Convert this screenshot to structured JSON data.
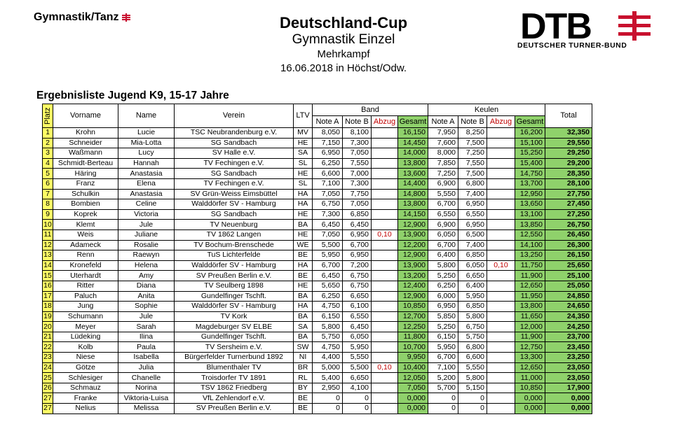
{
  "logo_left": {
    "text": "Gymnastik/Tanz"
  },
  "header": {
    "title": "Deutschland-Cup",
    "subtitle": "Gymnastik Einzel",
    "discipline": "Mehrkampf",
    "date_place": "16.06.2018 in Höchst/Odw."
  },
  "logo_right": {
    "abbr": "DTB",
    "name": "DEUTSCHER TURNER-BUND"
  },
  "list_title": "Ergebnisliste Jugend K9, 15-17 Jahre",
  "colors": {
    "platz": "#ffff66",
    "gesamt": "#8fd16b",
    "abzug": "#c00000",
    "brand": "#c8102e"
  },
  "table": {
    "headers": {
      "platz": "Platz",
      "vorname": "Vorname",
      "name": "Name",
      "verein": "Verein",
      "ltv": "LTV",
      "band": "Band",
      "keulen": "Keulen",
      "note_a": "Note A",
      "note_b": "Note B",
      "abzug": "Abzug",
      "gesamt": "Gesamt",
      "total": "Total"
    },
    "rows": [
      {
        "platz": "1",
        "vorname": "Krohn",
        "name": "Lucie",
        "verein": "TSC Neubrandenburg e.V.",
        "ltv": "MV",
        "band_a": "8,050",
        "band_b": "8,100",
        "band_abzug": "",
        "band_gesamt": "16,150",
        "keulen_a": "7,950",
        "keulen_b": "8,250",
        "keulen_abzug": "",
        "keulen_gesamt": "16,200",
        "total": "32,350"
      },
      {
        "platz": "2",
        "vorname": "Schneider",
        "name": "Mia-Lotta",
        "verein": "SG Sandbach",
        "ltv": "HE",
        "band_a": "7,150",
        "band_b": "7,300",
        "band_abzug": "",
        "band_gesamt": "14,450",
        "keulen_a": "7,600",
        "keulen_b": "7,500",
        "keulen_abzug": "",
        "keulen_gesamt": "15,100",
        "total": "29,550"
      },
      {
        "platz": "3",
        "vorname": "Waßmann",
        "name": "Lucy",
        "verein": "SV Halle e.V.",
        "ltv": "SA",
        "band_a": "6,950",
        "band_b": "7,050",
        "band_abzug": "",
        "band_gesamt": "14,000",
        "keulen_a": "8,000",
        "keulen_b": "7,250",
        "keulen_abzug": "",
        "keulen_gesamt": "15,250",
        "total": "29,250"
      },
      {
        "platz": "4",
        "vorname": "Schmidt-Berteau",
        "name": "Hannah",
        "verein": "TV Fechingen e.V.",
        "ltv": "SL",
        "band_a": "6,250",
        "band_b": "7,550",
        "band_abzug": "",
        "band_gesamt": "13,800",
        "keulen_a": "7,850",
        "keulen_b": "7,550",
        "keulen_abzug": "",
        "keulen_gesamt": "15,400",
        "total": "29,200"
      },
      {
        "platz": "5",
        "vorname": "Häring",
        "name": "Anastasia",
        "verein": "SG Sandbach",
        "ltv": "HE",
        "band_a": "6,600",
        "band_b": "7,000",
        "band_abzug": "",
        "band_gesamt": "13,600",
        "keulen_a": "7,250",
        "keulen_b": "7,500",
        "keulen_abzug": "",
        "keulen_gesamt": "14,750",
        "total": "28,350"
      },
      {
        "platz": "6",
        "vorname": "Franz",
        "name": "Elena",
        "verein": "TV Fechingen e.V.",
        "ltv": "SL",
        "band_a": "7,100",
        "band_b": "7,300",
        "band_abzug": "",
        "band_gesamt": "14,400",
        "keulen_a": "6,900",
        "keulen_b": "6,800",
        "keulen_abzug": "",
        "keulen_gesamt": "13,700",
        "total": "28,100"
      },
      {
        "platz": "7",
        "vorname": "Schulkin",
        "name": "Anastasia",
        "verein": "SV Grün-Weiss Eimsbüttel",
        "ltv": "HA",
        "band_a": "7,050",
        "band_b": "7,750",
        "band_abzug": "",
        "band_gesamt": "14,800",
        "keulen_a": "5,550",
        "keulen_b": "7,400",
        "keulen_abzug": "",
        "keulen_gesamt": "12,950",
        "total": "27,750"
      },
      {
        "platz": "8",
        "vorname": "Bombien",
        "name": "Celine",
        "verein": "Walddörfer SV - Hamburg",
        "ltv": "HA",
        "band_a": "6,750",
        "band_b": "7,050",
        "band_abzug": "",
        "band_gesamt": "13,800",
        "keulen_a": "6,700",
        "keulen_b": "6,950",
        "keulen_abzug": "",
        "keulen_gesamt": "13,650",
        "total": "27,450"
      },
      {
        "platz": "9",
        "vorname": "Koprek",
        "name": "Victoria",
        "verein": "SG Sandbach",
        "ltv": "HE",
        "band_a": "7,300",
        "band_b": "6,850",
        "band_abzug": "",
        "band_gesamt": "14,150",
        "keulen_a": "6,550",
        "keulen_b": "6,550",
        "keulen_abzug": "",
        "keulen_gesamt": "13,100",
        "total": "27,250"
      },
      {
        "platz": "10",
        "vorname": "Klemt",
        "name": "Jule",
        "verein": "TV Neuenburg",
        "ltv": "BA",
        "band_a": "6,450",
        "band_b": "6,450",
        "band_abzug": "",
        "band_gesamt": "12,900",
        "keulen_a": "6,900",
        "keulen_b": "6,950",
        "keulen_abzug": "",
        "keulen_gesamt": "13,850",
        "total": "26,750"
      },
      {
        "platz": "11",
        "vorname": "Weis",
        "name": "Juliane",
        "verein": "TV 1862 Langen",
        "ltv": "HE",
        "band_a": "7,050",
        "band_b": "6,950",
        "band_abzug": "0,10",
        "band_gesamt": "13,900",
        "keulen_a": "6,050",
        "keulen_b": "6,500",
        "keulen_abzug": "",
        "keulen_gesamt": "12,550",
        "total": "26,450"
      },
      {
        "platz": "12",
        "vorname": "Adameck",
        "name": "Rosalie",
        "verein": "TV Bochum-Brenschede",
        "ltv": "WE",
        "band_a": "5,500",
        "band_b": "6,700",
        "band_abzug": "",
        "band_gesamt": "12,200",
        "keulen_a": "6,700",
        "keulen_b": "7,400",
        "keulen_abzug": "",
        "keulen_gesamt": "14,100",
        "total": "26,300"
      },
      {
        "platz": "13",
        "vorname": "Renn",
        "name": "Raewyn",
        "verein": "TuS Lichterfelde",
        "ltv": "BE",
        "band_a": "5,950",
        "band_b": "6,950",
        "band_abzug": "",
        "band_gesamt": "12,900",
        "keulen_a": "6,400",
        "keulen_b": "6,850",
        "keulen_abzug": "",
        "keulen_gesamt": "13,250",
        "total": "26,150"
      },
      {
        "platz": "14",
        "vorname": "Kronefeld",
        "name": "Helena",
        "verein": "Walddörfer SV - Hamburg",
        "ltv": "HA",
        "band_a": "6,700",
        "band_b": "7,200",
        "band_abzug": "",
        "band_gesamt": "13,900",
        "keulen_a": "5,800",
        "keulen_b": "6,050",
        "keulen_abzug": "0,10",
        "keulen_gesamt": "11,750",
        "total": "25,650"
      },
      {
        "platz": "15",
        "vorname": "Uterhardt",
        "name": "Amy",
        "verein": "SV Preußen Berlin e.V.",
        "ltv": "BE",
        "band_a": "6,450",
        "band_b": "6,750",
        "band_abzug": "",
        "band_gesamt": "13,200",
        "keulen_a": "5,250",
        "keulen_b": "6,650",
        "keulen_abzug": "",
        "keulen_gesamt": "11,900",
        "total": "25,100"
      },
      {
        "platz": "16",
        "vorname": "Ritter",
        "name": "Diana",
        "verein": "TV Seulberg 1898",
        "ltv": "HE",
        "band_a": "5,650",
        "band_b": "6,750",
        "band_abzug": "",
        "band_gesamt": "12,400",
        "keulen_a": "6,250",
        "keulen_b": "6,400",
        "keulen_abzug": "",
        "keulen_gesamt": "12,650",
        "total": "25,050"
      },
      {
        "platz": "17",
        "vorname": "Paluch",
        "name": "Anita",
        "verein": "Gundelfinger Tschft.",
        "ltv": "BA",
        "band_a": "6,250",
        "band_b": "6,650",
        "band_abzug": "",
        "band_gesamt": "12,900",
        "keulen_a": "6,000",
        "keulen_b": "5,950",
        "keulen_abzug": "",
        "keulen_gesamt": "11,950",
        "total": "24,850"
      },
      {
        "platz": "18",
        "vorname": "Jung",
        "name": "Sophie",
        "verein": "Walddörfer SV - Hamburg",
        "ltv": "HA",
        "band_a": "4,750",
        "band_b": "6,100",
        "band_abzug": "",
        "band_gesamt": "10,850",
        "keulen_a": "6,950",
        "keulen_b": "6,850",
        "keulen_abzug": "",
        "keulen_gesamt": "13,800",
        "total": "24,650"
      },
      {
        "platz": "19",
        "vorname": "Schumann",
        "name": "Jule",
        "verein": "TV Kork",
        "ltv": "BA",
        "band_a": "6,150",
        "band_b": "6,550",
        "band_abzug": "",
        "band_gesamt": "12,700",
        "keulen_a": "5,850",
        "keulen_b": "5,800",
        "keulen_abzug": "",
        "keulen_gesamt": "11,650",
        "total": "24,350"
      },
      {
        "platz": "20",
        "vorname": "Meyer",
        "name": "Sarah",
        "verein": "Magdeburger SV ELBE",
        "ltv": "SA",
        "band_a": "5,800",
        "band_b": "6,450",
        "band_abzug": "",
        "band_gesamt": "12,250",
        "keulen_a": "5,250",
        "keulen_b": "6,750",
        "keulen_abzug": "",
        "keulen_gesamt": "12,000",
        "total": "24,250"
      },
      {
        "platz": "21",
        "vorname": "Lüdeking",
        "name": "Ilina",
        "verein": "Gundelfinger Tschft.",
        "ltv": "BA",
        "band_a": "5,750",
        "band_b": "6,050",
        "band_abzug": "",
        "band_gesamt": "11,800",
        "keulen_a": "6,150",
        "keulen_b": "5,750",
        "keulen_abzug": "",
        "keulen_gesamt": "11,900",
        "total": "23,700"
      },
      {
        "platz": "22",
        "vorname": "Kolb",
        "name": "Paula",
        "verein": "TV Sersheim e.V.",
        "ltv": "SW",
        "band_a": "4,750",
        "band_b": "5,950",
        "band_abzug": "",
        "band_gesamt": "10,700",
        "keulen_a": "5,950",
        "keulen_b": "6,800",
        "keulen_abzug": "",
        "keulen_gesamt": "12,750",
        "total": "23,450"
      },
      {
        "platz": "23",
        "vorname": "Niese",
        "name": "Isabella",
        "verein": "Bürgerfelder Turnerbund 1892",
        "ltv": "NI",
        "band_a": "4,400",
        "band_b": "5,550",
        "band_abzug": "",
        "band_gesamt": "9,950",
        "keulen_a": "6,700",
        "keulen_b": "6,600",
        "keulen_abzug": "",
        "keulen_gesamt": "13,300",
        "total": "23,250"
      },
      {
        "platz": "24",
        "vorname": "Götze",
        "name": "Julia",
        "verein": "Blumenthaler TV",
        "ltv": "BR",
        "band_a": "5,000",
        "band_b": "5,500",
        "band_abzug": "0,10",
        "band_gesamt": "10,400",
        "keulen_a": "7,100",
        "keulen_b": "5,550",
        "keulen_abzug": "",
        "keulen_gesamt": "12,650",
        "total": "23,050"
      },
      {
        "platz": "25",
        "vorname": "Schlesiger",
        "name": "Chanelle",
        "verein": "Troisdorfer TV 1891",
        "ltv": "RL",
        "band_a": "5,400",
        "band_b": "6,650",
        "band_abzug": "",
        "band_gesamt": "12,050",
        "keulen_a": "5,200",
        "keulen_b": "5,800",
        "keulen_abzug": "",
        "keulen_gesamt": "11,000",
        "total": "23,050"
      },
      {
        "platz": "26",
        "vorname": "Schmauz",
        "name": "Norina",
        "verein": "TSV 1862 Friedberg",
        "ltv": "BY",
        "band_a": "2,950",
        "band_b": "4,100",
        "band_abzug": "",
        "band_gesamt": "7,050",
        "keulen_a": "5,700",
        "keulen_b": "5,150",
        "keulen_abzug": "",
        "keulen_gesamt": "10,850",
        "total": "17,900"
      },
      {
        "platz": "27",
        "vorname": "Franke",
        "name": "Viktoria-Luisa",
        "verein": "VfL Zehlendorf e.V.",
        "ltv": "BE",
        "band_a": "0",
        "band_b": "0",
        "band_abzug": "",
        "band_gesamt": "0,000",
        "keulen_a": "0",
        "keulen_b": "0",
        "keulen_abzug": "",
        "keulen_gesamt": "0,000",
        "total": "0,000"
      },
      {
        "platz": "27",
        "vorname": "Nelius",
        "name": "Melissa",
        "verein": "SV Preußen Berlin e.V.",
        "ltv": "BE",
        "band_a": "0",
        "band_b": "0",
        "band_abzug": "",
        "band_gesamt": "0,000",
        "keulen_a": "0",
        "keulen_b": "0",
        "keulen_abzug": "",
        "keulen_gesamt": "0,000",
        "total": "0,000"
      }
    ]
  }
}
